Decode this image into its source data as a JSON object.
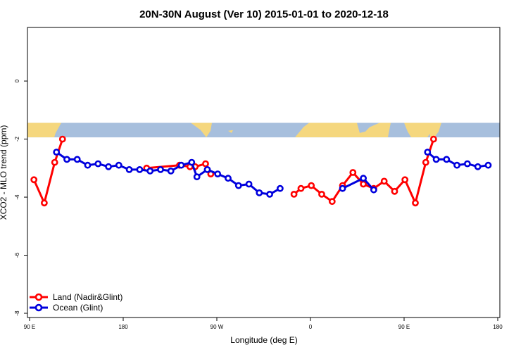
{
  "chart_data": {
    "type": "line",
    "title": "20N-30N August (Ver 10)   2015-01-01 to 2020-12-18",
    "xlabel": "Longitude (deg E)",
    "ylabel": "XCO2 - MLO trend (ppm)",
    "xlim": [
      -90,
      180
    ],
    "ylim": [
      -8,
      1.7
    ],
    "x_ticks": [
      -90,
      -36,
      18,
      72,
      126,
      180
    ],
    "x_tick_labels": [
      "90 E",
      "180",
      "90 W",
      "0",
      "90 E",
      "180"
    ],
    "y_ticks": [
      0,
      -2,
      -4,
      -6,
      -8
    ],
    "y_tick_labels": [
      "0",
      "-2",
      "-4",
      "-6",
      "-8"
    ],
    "legend_position": "bottom-left",
    "map_strip": {
      "lon_range": [
        -90,
        180
      ],
      "y_range": [
        -1.44,
        -1.94
      ],
      "ocean_color": "#a7bfdd",
      "land_color": "#f5d77e"
    },
    "series": [
      {
        "name": "Land (Nadir&Glint)",
        "color": "#ff0000",
        "points": [
          [
            -87.5,
            -3.4
          ],
          [
            -81.5,
            -4.2
          ],
          [
            -75.5,
            -2.8
          ],
          [
            -71,
            -2.0
          ],
          [
            -22.5,
            -3.0
          ],
          [
            -3.5,
            -2.9
          ],
          [
            2.5,
            -2.95
          ],
          [
            5.5,
            -2.95
          ],
          [
            11.5,
            -2.85
          ],
          [
            14.5,
            -3.2
          ],
          [
            62.5,
            -3.9
          ],
          [
            66.5,
            -3.7
          ],
          [
            72.5,
            -3.6
          ],
          [
            78.5,
            -3.9
          ],
          [
            84.5,
            -4.15
          ],
          [
            90.5,
            -3.6
          ],
          [
            96.5,
            -3.15
          ],
          [
            102.5,
            -3.55
          ],
          [
            108.5,
            -3.7
          ],
          [
            114.5,
            -3.45
          ],
          [
            120.5,
            -3.8
          ],
          [
            126.5,
            -3.4
          ],
          [
            132.5,
            -4.2
          ],
          [
            138.5,
            -2.8
          ],
          [
            143,
            -2.0
          ]
        ]
      },
      {
        "name": "Ocean (Glint)",
        "color": "#0000dd",
        "points": [
          [
            -74.5,
            -2.45
          ],
          [
            -68.5,
            -2.7
          ],
          [
            -62.5,
            -2.7
          ],
          [
            -56.5,
            -2.9
          ],
          [
            -50.5,
            -2.85
          ],
          [
            -44.5,
            -2.95
          ],
          [
            -38.5,
            -2.9
          ],
          [
            -32.5,
            -3.05
          ],
          [
            -26.5,
            -3.05
          ],
          [
            -20.5,
            -3.1
          ],
          [
            -14.5,
            -3.05
          ],
          [
            -8.5,
            -3.1
          ],
          [
            -2.5,
            -2.9
          ],
          [
            3.5,
            -2.8
          ],
          [
            6.5,
            -3.3
          ],
          [
            12.5,
            -3.05
          ],
          [
            18.5,
            -3.2
          ],
          [
            24.5,
            -3.35
          ],
          [
            30.5,
            -3.6
          ],
          [
            36.5,
            -3.55
          ],
          [
            42.5,
            -3.85
          ],
          [
            48.5,
            -3.9
          ],
          [
            54.5,
            -3.7
          ],
          [
            90.5,
            -3.7
          ],
          [
            102.5,
            -3.35
          ],
          [
            108.5,
            -3.75
          ],
          [
            139.5,
            -2.45
          ],
          [
            144.5,
            -2.7
          ],
          [
            150.5,
            -2.7
          ],
          [
            156.5,
            -2.9
          ],
          [
            162.5,
            -2.85
          ],
          [
            168.5,
            -2.95
          ],
          [
            174.5,
            -2.9
          ]
        ]
      }
    ]
  }
}
